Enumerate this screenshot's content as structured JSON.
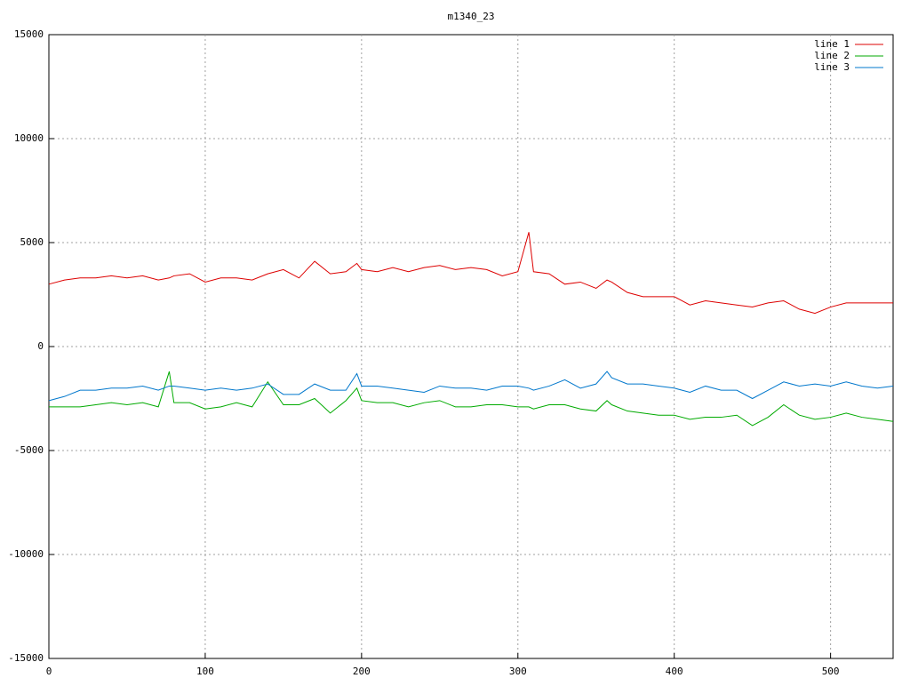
{
  "chart_data": {
    "type": "line",
    "title": "m1340_23",
    "x": [
      0,
      10,
      20,
      30,
      40,
      50,
      60,
      70,
      77,
      80,
      90,
      100,
      110,
      120,
      130,
      140,
      150,
      160,
      170,
      180,
      190,
      197,
      200,
      210,
      220,
      230,
      240,
      250,
      260,
      270,
      280,
      290,
      300,
      307,
      310,
      320,
      330,
      340,
      350,
      357,
      360,
      370,
      380,
      390,
      400,
      410,
      420,
      430,
      440,
      450,
      460,
      470,
      480,
      490,
      500,
      510,
      520,
      530,
      540
    ],
    "series": [
      {
        "name": "line 1",
        "color": "#dd0000",
        "values": [
          3000,
          3200,
          3300,
          3300,
          3400,
          3300,
          3400,
          3200,
          3300,
          3400,
          3500,
          3100,
          3300,
          3300,
          3200,
          3500,
          3700,
          3300,
          4100,
          3500,
          3600,
          4000,
          3700,
          3600,
          3800,
          3600,
          3800,
          3900,
          3700,
          3800,
          3700,
          3400,
          3600,
          5500,
          3600,
          3500,
          3000,
          3100,
          2800,
          3200,
          3100,
          2600,
          2400,
          2400,
          2400,
          2000,
          2200,
          2100,
          2000,
          1900,
          2100,
          2200,
          1800,
          1600,
          1900,
          2100,
          2100,
          2100,
          2100
        ]
      },
      {
        "name": "line 2",
        "color": "#00aa00",
        "values": [
          -2900,
          -2900,
          -2900,
          -2800,
          -2700,
          -2800,
          -2700,
          -2900,
          -1200,
          -2700,
          -2700,
          -3000,
          -2900,
          -2700,
          -2900,
          -1700,
          -2800,
          -2800,
          -2500,
          -3200,
          -2600,
          -2000,
          -2600,
          -2700,
          -2700,
          -2900,
          -2700,
          -2600,
          -2900,
          -2900,
          -2800,
          -2800,
          -2900,
          -2900,
          -3000,
          -2800,
          -2800,
          -3000,
          -3100,
          -2600,
          -2800,
          -3100,
          -3200,
          -3300,
          -3300,
          -3500,
          -3400,
          -3400,
          -3300,
          -3800,
          -3400,
          -2800,
          -3300,
          -3500,
          -3400,
          -3200,
          -3400,
          -3500,
          -3600
        ]
      },
      {
        "name": "line 3",
        "color": "#0077cc",
        "values": [
          -2600,
          -2400,
          -2100,
          -2100,
          -2000,
          -2000,
          -1900,
          -2100,
          -1900,
          -1900,
          -2000,
          -2100,
          -2000,
          -2100,
          -2000,
          -1800,
          -2300,
          -2300,
          -1800,
          -2100,
          -2100,
          -1300,
          -1900,
          -1900,
          -2000,
          -2100,
          -2200,
          -1900,
          -2000,
          -2000,
          -2100,
          -1900,
          -1900,
          -2000,
          -2100,
          -1900,
          -1600,
          -2000,
          -1800,
          -1200,
          -1500,
          -1800,
          -1800,
          -1900,
          -2000,
          -2200,
          -1900,
          -2100,
          -2100,
          -2500,
          -2100,
          -1700,
          -1900,
          -1800,
          -1900,
          -1700,
          -1900,
          -2000,
          -1900
        ]
      }
    ],
    "xlim": [
      0,
      540
    ],
    "xticks": [
      0,
      100,
      200,
      300,
      400,
      500
    ],
    "ylim": [
      -15000,
      15000
    ],
    "yticks": [
      -15000,
      -10000,
      -5000,
      0,
      5000,
      10000,
      15000
    ],
    "grid": true,
    "legend": "top-right"
  }
}
